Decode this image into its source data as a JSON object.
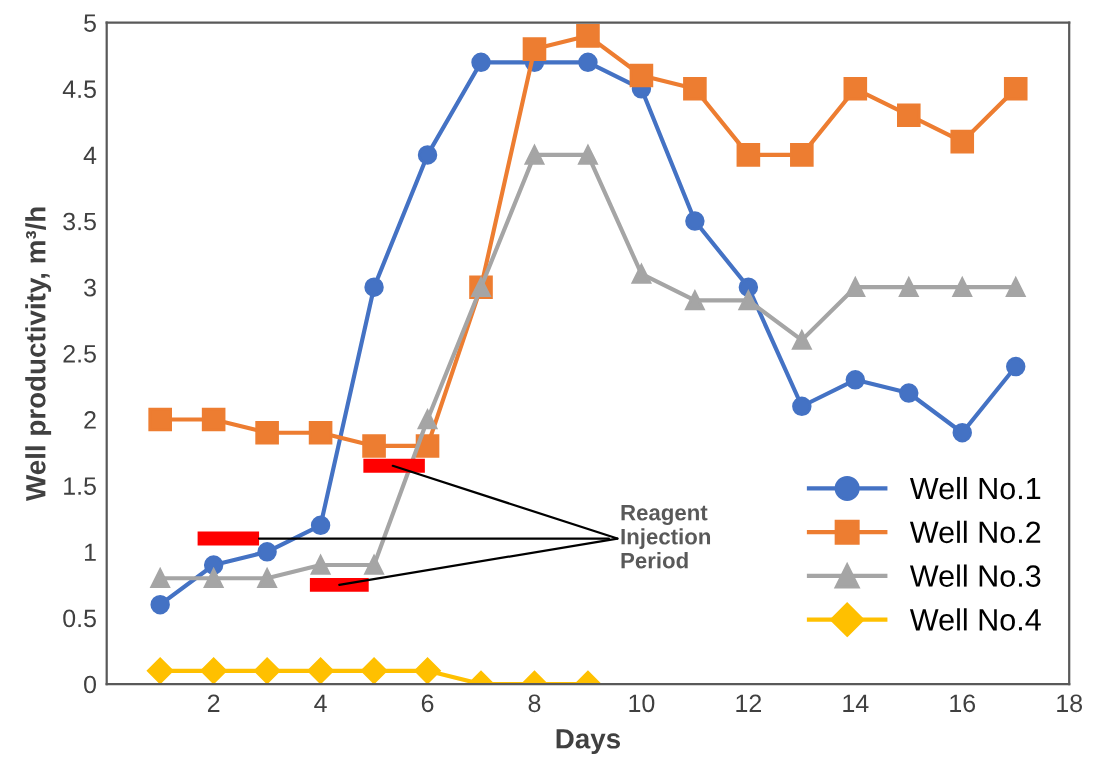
{
  "chart_data": {
    "type": "line",
    "xlabel": "Days",
    "ylabel": "Well productivity, m³/h",
    "xlim": [
      0,
      18
    ],
    "xticks": [
      2,
      4,
      6,
      8,
      10,
      12,
      14,
      16,
      18
    ],
    "ylim": [
      0,
      5
    ],
    "yticks": [
      0,
      0.5,
      1,
      1.5,
      2,
      2.5,
      3,
      3.5,
      4,
      4.5,
      5
    ],
    "grid": false,
    "legend": "bottom right",
    "line_style": "solid",
    "x": [
      1,
      2,
      3,
      4,
      5,
      6,
      7,
      8,
      9,
      10,
      11,
      12,
      13,
      14,
      15,
      16,
      17
    ],
    "series": [
      {
        "name": "Well No.1",
        "color": "#4472c4",
        "marker": "circle",
        "values": [
          0.6,
          0.9,
          1.0,
          1.2,
          3.0,
          4.0,
          4.7,
          4.7,
          4.7,
          4.5,
          3.5,
          3.0,
          2.1,
          2.3,
          2.2,
          1.9,
          2.4
        ]
      },
      {
        "name": "Well No.2",
        "color": "#ed7d31",
        "marker": "square",
        "values": [
          2.0,
          2.0,
          1.9,
          1.9,
          1.8,
          1.8,
          3.0,
          4.8,
          4.9,
          4.6,
          4.5,
          4.0,
          4.0,
          4.5,
          4.3,
          4.1,
          4.5
        ]
      },
      {
        "name": "Well No.3",
        "color": "#a5a5a5",
        "marker": "triangle",
        "values": [
          0.8,
          0.8,
          0.8,
          0.9,
          0.9,
          2.0,
          3.0,
          4.0,
          4.0,
          3.1,
          2.9,
          2.9,
          2.6,
          3.0,
          3.0,
          3.0,
          3.0
        ]
      },
      {
        "name": "Well No.4",
        "color": "#ffc000",
        "marker": "diamond",
        "x": [
          1,
          2,
          3,
          4,
          5,
          6,
          7,
          8,
          9
        ],
        "values": [
          0.1,
          0.1,
          0.1,
          0.1,
          0.1,
          0.1,
          0,
          0,
          0
        ]
      },
      {
        "color": "#ff0000",
        "marker": "none",
        "x": [
          1.7,
          2.85
        ],
        "values": [
          1.1,
          1.1
        ]
      },
      {
        "color": "#ff0000",
        "marker": "none",
        "x": [
          3.8,
          4.9
        ],
        "values": [
          0.75,
          0.75
        ]
      },
      {
        "color": "#ff0000",
        "marker": "none",
        "x": [
          4.8,
          5.95
        ],
        "values": [
          1.65,
          1.65
        ]
      }
    ],
    "annotations": [
      {
        "text": "Reagent\nInjection\nPeriod",
        "x": 2.85,
        "y": 1.1
      }
    ]
  }
}
